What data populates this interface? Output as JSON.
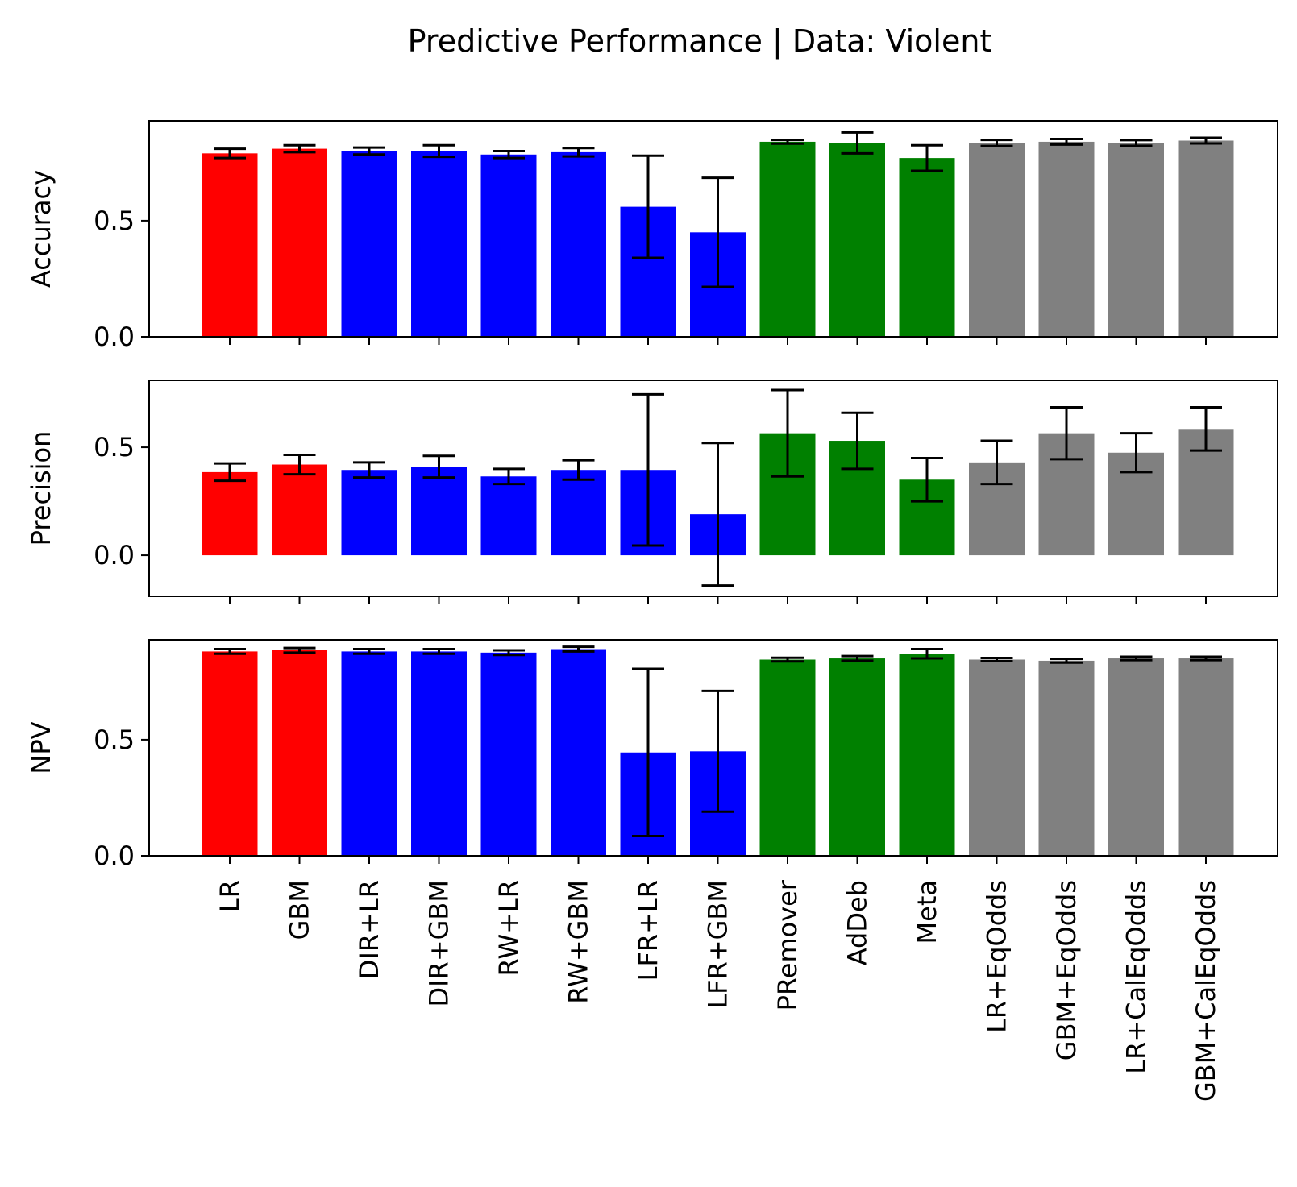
{
  "chart_data": {
    "type": "bar",
    "title": "Predictive Performance | Data: Violent",
    "categories": [
      "LR",
      "GBM",
      "DIR+LR",
      "DIR+GBM",
      "RW+LR",
      "RW+GBM",
      "LFR+LR",
      "LFR+GBM",
      "PRemover",
      "AdDeb",
      "Meta",
      "LR+EqOdds",
      "GBM+EqOdds",
      "LR+CalEqOdds",
      "GBM+CalEqOdds"
    ],
    "bar_colors": [
      "#ff0000",
      "#ff0000",
      "#0000ff",
      "#0000ff",
      "#0000ff",
      "#0000ff",
      "#0000ff",
      "#0000ff",
      "#008000",
      "#008000",
      "#008000",
      "#808080",
      "#808080",
      "#808080",
      "#808080"
    ],
    "error_color": "#000000",
    "grid": false,
    "legend": "none",
    "panels": [
      {
        "ylabel": "Accuracy",
        "ylim": [
          0,
          0.93
        ],
        "yticks": [
          0.0,
          0.5
        ],
        "ytick_labels": [
          "0.0",
          "0.5"
        ],
        "values": [
          0.79,
          0.81,
          0.8,
          0.8,
          0.785,
          0.795,
          0.56,
          0.45,
          0.84,
          0.835,
          0.77,
          0.835,
          0.84,
          0.835,
          0.845
        ],
        "errors": [
          0.02,
          0.015,
          0.015,
          0.025,
          0.015,
          0.018,
          0.22,
          0.235,
          0.008,
          0.045,
          0.055,
          0.013,
          0.012,
          0.012,
          0.012
        ]
      },
      {
        "ylabel": "Precision",
        "ylim": [
          -0.19,
          0.81
        ],
        "yticks": [
          0.0,
          0.5
        ],
        "ytick_labels": [
          "0.0",
          "0.5"
        ],
        "values": [
          0.385,
          0.42,
          0.395,
          0.41,
          0.365,
          0.395,
          0.395,
          0.19,
          0.565,
          0.53,
          0.35,
          0.43,
          0.565,
          0.475,
          0.585
        ],
        "errors": [
          0.04,
          0.045,
          0.035,
          0.05,
          0.035,
          0.045,
          0.35,
          0.33,
          0.2,
          0.13,
          0.1,
          0.1,
          0.12,
          0.09,
          0.1
        ]
      },
      {
        "ylabel": "NPV",
        "ylim": [
          0,
          0.93
        ],
        "yticks": [
          0.0,
          0.5
        ],
        "ytick_labels": [
          "0.0",
          "0.5"
        ],
        "values": [
          0.88,
          0.885,
          0.88,
          0.88,
          0.875,
          0.89,
          0.445,
          0.45,
          0.845,
          0.85,
          0.87,
          0.845,
          0.84,
          0.85,
          0.85
        ],
        "errors": [
          0.01,
          0.01,
          0.01,
          0.01,
          0.01,
          0.01,
          0.36,
          0.26,
          0.008,
          0.01,
          0.02,
          0.007,
          0.008,
          0.007,
          0.007
        ]
      }
    ]
  }
}
